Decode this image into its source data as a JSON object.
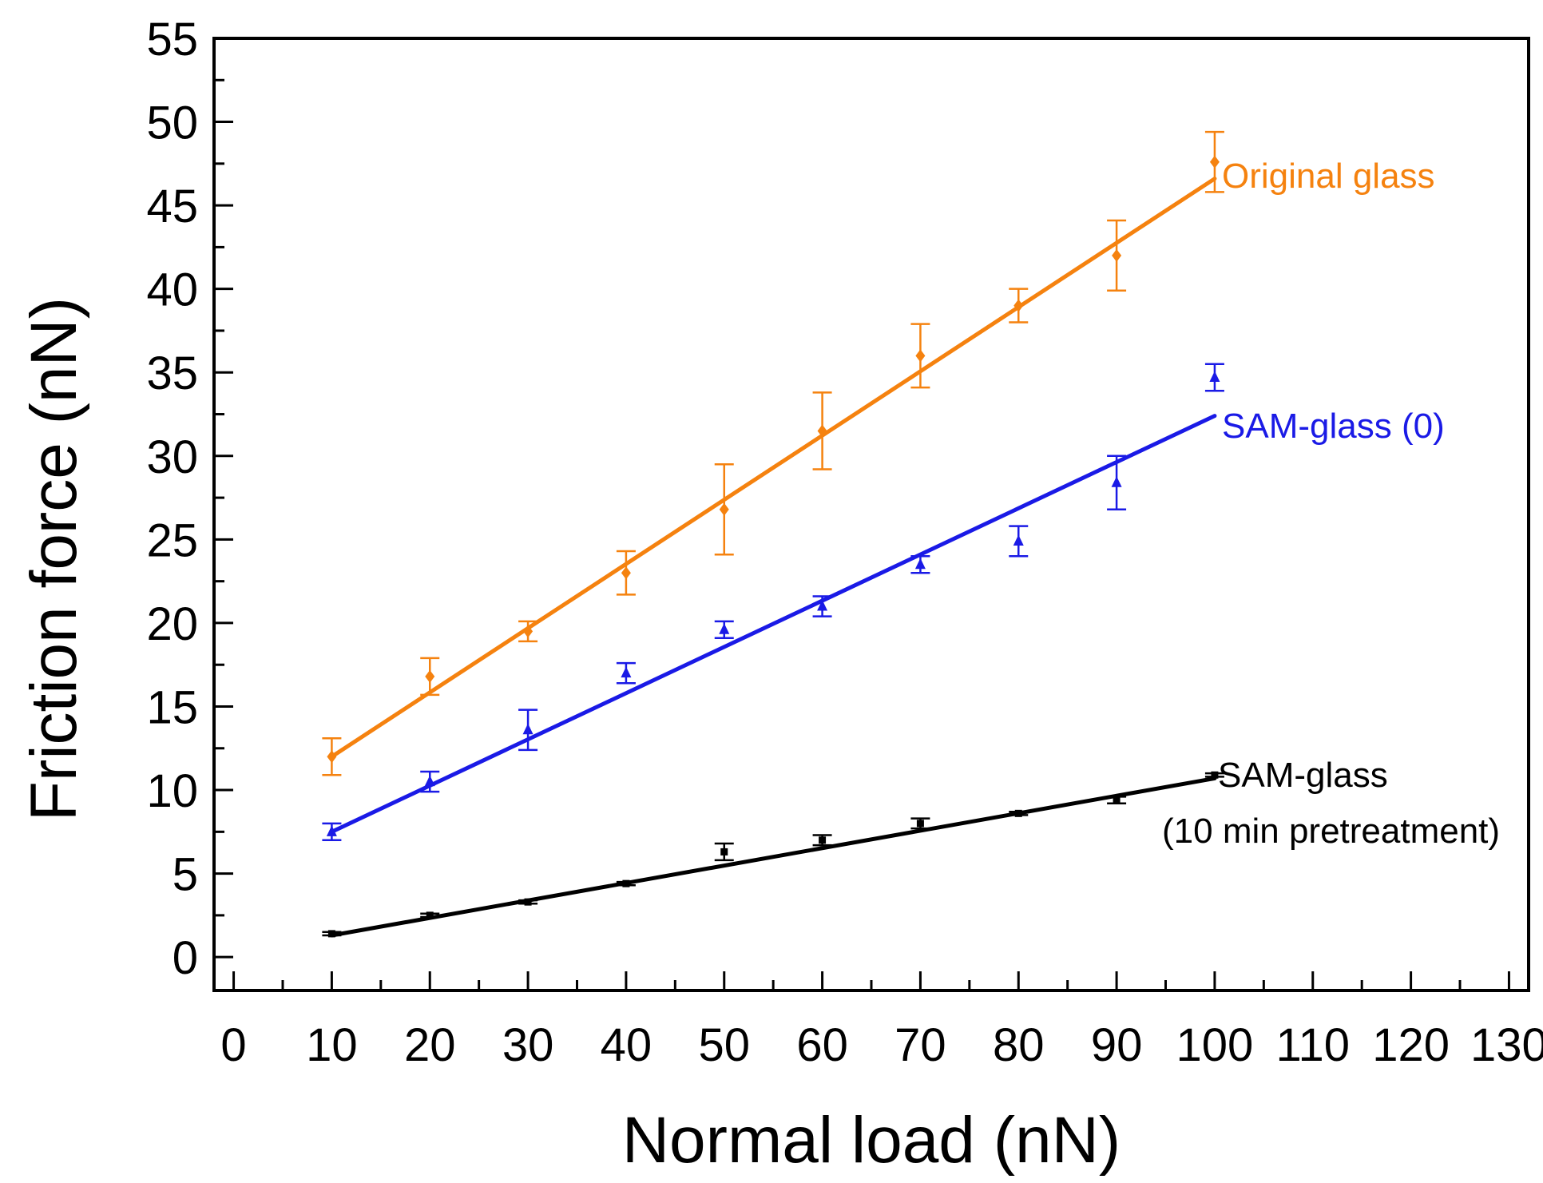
{
  "chart_data": {
    "type": "scatter",
    "title": "",
    "xlabel": "Normal load (nN)",
    "ylabel": "Friction force (nN)",
    "xlim": [
      -2,
      132
    ],
    "ylim": [
      -2,
      55
    ],
    "x_ticks": [
      0,
      10,
      20,
      30,
      40,
      50,
      60,
      70,
      80,
      90,
      100,
      110,
      120,
      130
    ],
    "y_ticks": [
      0,
      5,
      10,
      15,
      20,
      25,
      30,
      35,
      40,
      45,
      50,
      55
    ],
    "x_tick_labels": [
      "0",
      "10",
      "20",
      "30",
      "40",
      "50",
      "60",
      "70",
      "80",
      "90",
      "100",
      "110",
      "120",
      "130"
    ],
    "y_tick_labels": [
      "0",
      "5",
      "10",
      "15",
      "20",
      "25",
      "30",
      "35",
      "40",
      "45",
      "50",
      "55"
    ],
    "grid": false,
    "series": [
      {
        "name": "Original glass",
        "label_lines": [
          "Original glass"
        ],
        "color": "#f5820f",
        "marker": "diamond",
        "x": [
          10,
          20,
          30,
          40,
          50,
          60,
          70,
          80,
          90,
          100
        ],
        "y": [
          12.0,
          16.8,
          19.5,
          23.0,
          26.8,
          31.5,
          36.0,
          39.0,
          42.0,
          47.6
        ],
        "err": [
          1.1,
          1.1,
          0.6,
          1.3,
          2.7,
          2.3,
          1.9,
          1.0,
          2.1,
          1.8
        ],
        "fit": {
          "x": [
            10,
            100
          ],
          "y": [
            12.0,
            46.6
          ]
        }
      },
      {
        "name": "SAM-glass (0)",
        "label_lines": [
          "SAM-glass (0)"
        ],
        "color": "#1a1ae6",
        "marker": "triangle",
        "x": [
          10,
          20,
          30,
          40,
          50,
          60,
          70,
          80,
          90,
          100
        ],
        "y": [
          7.5,
          10.5,
          13.6,
          17.0,
          19.6,
          21.0,
          23.5,
          24.9,
          28.4,
          34.7
        ],
        "err": [
          0.5,
          0.6,
          1.2,
          0.6,
          0.5,
          0.6,
          0.5,
          0.9,
          1.6,
          0.8
        ],
        "fit": {
          "x": [
            10,
            100
          ],
          "y": [
            7.5,
            32.4
          ]
        }
      },
      {
        "name": "SAM-glass (10 min pretreatment)",
        "label_lines": [
          "SAM-glass",
          "(10 min pretreatment)"
        ],
        "color": "#000000",
        "marker": "square",
        "x": [
          10,
          20,
          30,
          40,
          50,
          60,
          70,
          80,
          90,
          100
        ],
        "y": [
          1.4,
          2.5,
          3.3,
          4.4,
          6.3,
          7.0,
          8.0,
          8.6,
          9.4,
          10.9
        ],
        "err": [
          0.1,
          0.1,
          0.1,
          0.1,
          0.5,
          0.3,
          0.3,
          0.1,
          0.2,
          0.1
        ],
        "fit": {
          "x": [
            10,
            100
          ],
          "y": [
            1.3,
            10.7
          ]
        }
      }
    ]
  }
}
